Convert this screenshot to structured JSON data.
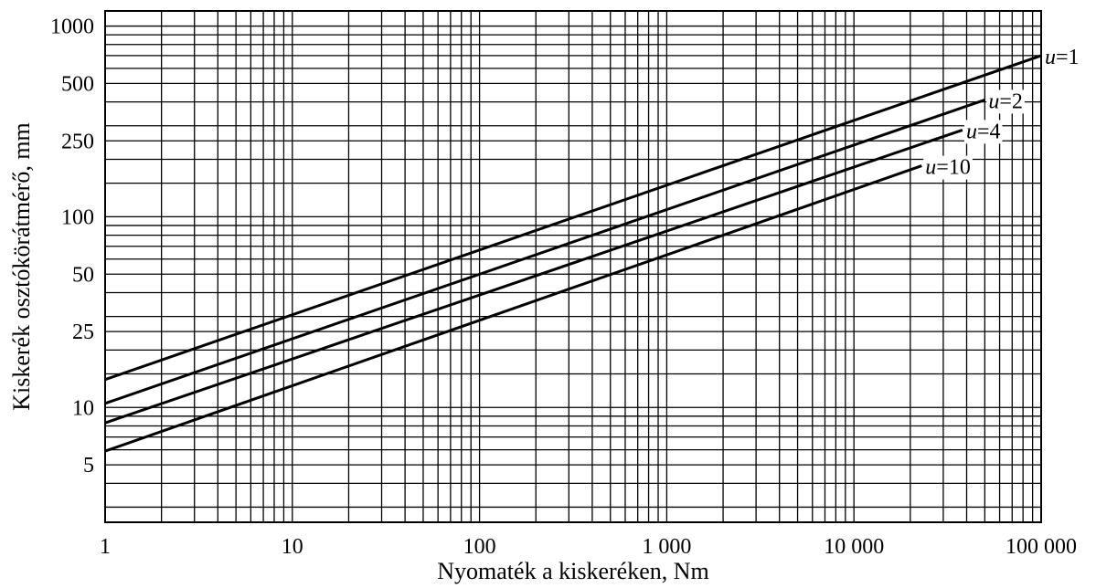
{
  "chart_data": {
    "type": "line",
    "xscale": "log",
    "yscale": "log",
    "xlim": [
      1,
      100000
    ],
    "ylim": [
      2.5,
      1200
    ],
    "xlabel": "Nyomaték a kiskeréken, Nm",
    "ylabel": "Kiskerék osztókörátmérő, mm",
    "x_ticks": [
      {
        "value": 1,
        "label": "1"
      },
      {
        "value": 10,
        "label": "10"
      },
      {
        "value": 100,
        "label": "100"
      },
      {
        "value": 1000,
        "label": "1 000"
      },
      {
        "value": 10000,
        "label": "10 000"
      },
      {
        "value": 100000,
        "label": "100 000"
      }
    ],
    "y_ticks": [
      {
        "value": 5,
        "label": "5"
      },
      {
        "value": 10,
        "label": "10"
      },
      {
        "value": 25,
        "label": "25"
      },
      {
        "value": 50,
        "label": "50"
      },
      {
        "value": 100,
        "label": "100"
      },
      {
        "value": 250,
        "label": "250"
      },
      {
        "value": 500,
        "label": "500"
      },
      {
        "value": 1000,
        "label": "1000"
      }
    ],
    "y_gridlines": [
      3,
      4,
      5,
      6,
      7,
      8,
      9,
      10,
      15,
      20,
      25,
      30,
      40,
      50,
      60,
      70,
      80,
      90,
      100,
      150,
      200,
      250,
      300,
      400,
      500,
      600,
      700,
      800,
      900,
      1000
    ],
    "grid": true,
    "series": [
      {
        "name_var": "u",
        "name_eq": "=1",
        "x": [
          1,
          125000
        ],
        "y": [
          14,
          700
        ]
      },
      {
        "name_var": "u",
        "name_eq": "=2",
        "x": [
          1,
          50000
        ],
        "y": [
          10.5,
          410
        ]
      },
      {
        "name_var": "u",
        "name_eq": "=4",
        "x": [
          1,
          38000
        ],
        "y": [
          8.3,
          285
        ]
      },
      {
        "name_var": "u",
        "name_eq": "=10",
        "x": [
          1,
          23000
        ],
        "y": [
          5.9,
          185
        ]
      }
    ]
  }
}
